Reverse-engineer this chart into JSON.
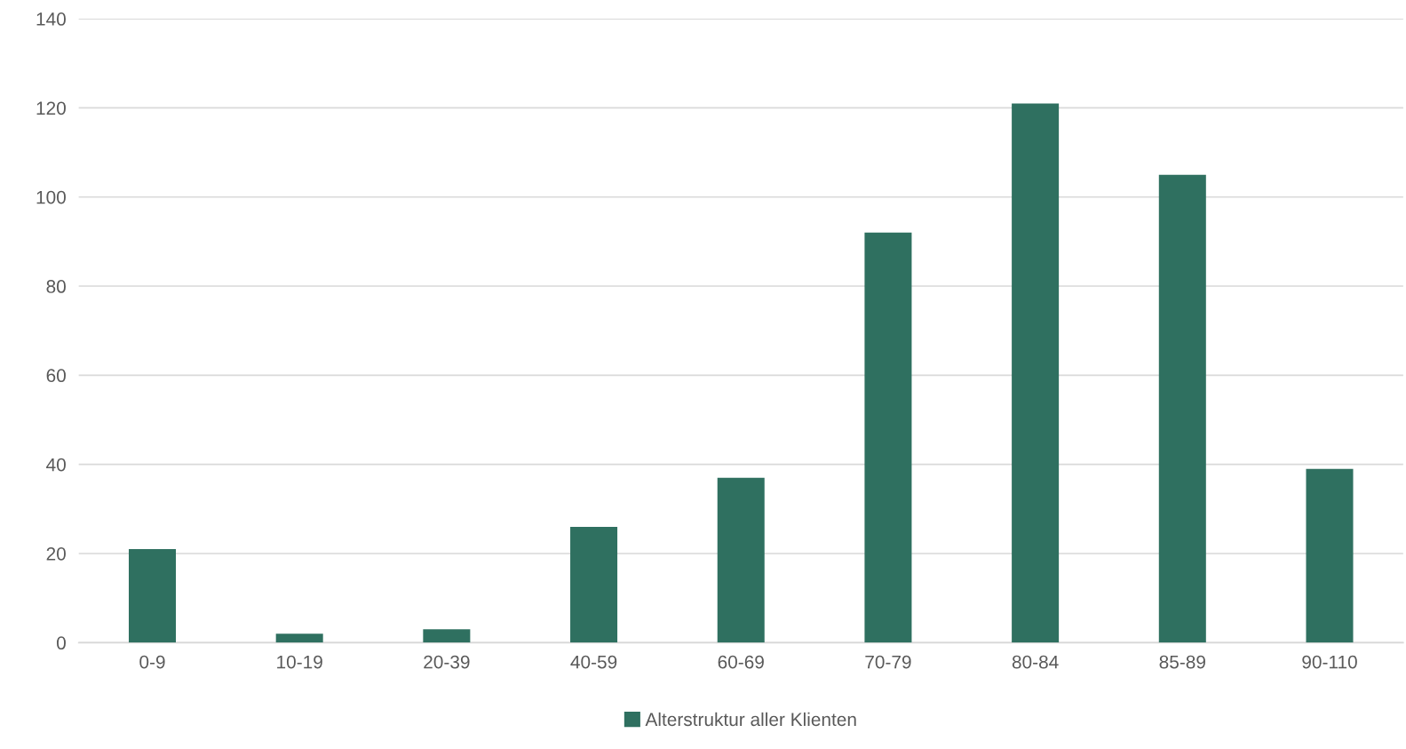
{
  "chart_data": {
    "type": "bar",
    "categories": [
      "0-9",
      "10-19",
      "20-39",
      "40-59",
      "60-69",
      "70-79",
      "80-84",
      "85-89",
      "90-110"
    ],
    "series": [
      {
        "name": "Alterstruktur aller Klienten",
        "color": "#2f7060",
        "values": [
          21,
          2,
          3,
          26,
          37,
          92,
          121,
          105,
          39
        ]
      }
    ],
    "ylim": [
      0,
      140
    ],
    "yticks": [
      0,
      20,
      40,
      60,
      80,
      100,
      120,
      140
    ],
    "grid": "y",
    "legend": "bottom"
  }
}
